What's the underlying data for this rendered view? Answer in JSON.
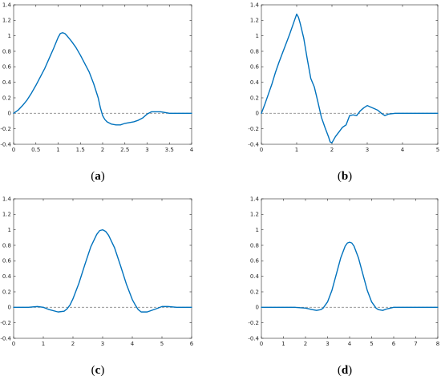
{
  "style": {
    "line_color": "#0072BD",
    "zero_line_color": "#8c8c8c",
    "axis_color": "#262626",
    "background": "#ffffff"
  },
  "chart_data": [
    {
      "type": "line",
      "caption": "(a)",
      "caption_letter": "a",
      "title": "",
      "xlabel": "",
      "ylabel": "",
      "xlim": [
        0,
        4
      ],
      "ylim": [
        -0.4,
        1.4
      ],
      "xticks": [
        0,
        0.5,
        1,
        1.5,
        2,
        2.5,
        3,
        3.5,
        4
      ],
      "xtick_labels": [
        "0",
        "0.5",
        "1",
        "1.5",
        "2",
        "2.5",
        "3",
        "3.5",
        "4"
      ],
      "yticks": [
        -0.4,
        -0.2,
        0,
        0.2,
        0.4,
        0.6,
        0.8,
        1,
        1.2,
        1.4
      ],
      "ytick_labels": [
        "-0.4",
        "-0.2",
        "0",
        "0.2",
        "0.4",
        "0.6",
        "0.8",
        "1",
        "1.2",
        "1.4"
      ],
      "grid": false,
      "reference_line": {
        "y": 0,
        "style": "dashed"
      },
      "series": [
        {
          "x": [
            0,
            0.1,
            0.2,
            0.3,
            0.4,
            0.5,
            0.6,
            0.7,
            0.8,
            0.9,
            1.0,
            1.05,
            1.1,
            1.15,
            1.2,
            1.3,
            1.4,
            1.5,
            1.6,
            1.7,
            1.8,
            1.9,
            1.95,
            2.0,
            2.05,
            2.1,
            2.2,
            2.3,
            2.4,
            2.5,
            2.6,
            2.7,
            2.8,
            2.9,
            3.0,
            3.1,
            3.2,
            3.3,
            3.4,
            3.5,
            3.6,
            3.7,
            3.8,
            3.9,
            4.0
          ],
          "y": [
            0,
            0.04,
            0.1,
            0.17,
            0.26,
            0.36,
            0.47,
            0.58,
            0.71,
            0.84,
            0.98,
            1.03,
            1.04,
            1.03,
            1.0,
            0.93,
            0.85,
            0.75,
            0.64,
            0.53,
            0.38,
            0.2,
            0.07,
            -0.03,
            -0.08,
            -0.11,
            -0.14,
            -0.15,
            -0.15,
            -0.13,
            -0.12,
            -0.11,
            -0.09,
            -0.06,
            -0.01,
            0.02,
            0.02,
            0.02,
            0.01,
            0.0,
            0.0,
            0.0,
            0.0,
            0.0,
            0.0
          ]
        }
      ]
    },
    {
      "type": "line",
      "caption": "(b)",
      "caption_letter": "b",
      "title": "",
      "xlabel": "",
      "ylabel": "",
      "xlim": [
        0,
        5
      ],
      "ylim": [
        -0.4,
        1.4
      ],
      "xticks": [
        0,
        1,
        2,
        3,
        4,
        5
      ],
      "xtick_labels": [
        "0",
        "1",
        "2",
        "3",
        "4",
        "5"
      ],
      "yticks": [
        -0.4,
        -0.2,
        0,
        0.2,
        0.4,
        0.6,
        0.8,
        1,
        1.2,
        1.4
      ],
      "ytick_labels": [
        "-0.4",
        "-0.2",
        "0",
        "0.2",
        "0.4",
        "0.6",
        "0.8",
        "1",
        "1.2",
        "1.4"
      ],
      "grid": false,
      "reference_line": {
        "y": 0,
        "style": "dashed"
      },
      "series": [
        {
          "x": [
            0,
            0.1,
            0.2,
            0.3,
            0.4,
            0.5,
            0.6,
            0.7,
            0.8,
            0.9,
            1.0,
            1.05,
            1.1,
            1.2,
            1.3,
            1.4,
            1.5,
            1.6,
            1.7,
            1.8,
            1.9,
            1.95,
            2.0,
            2.05,
            2.1,
            2.2,
            2.3,
            2.4,
            2.5,
            2.6,
            2.7,
            2.8,
            2.9,
            3.0,
            3.1,
            3.2,
            3.3,
            3.4,
            3.5,
            3.6,
            3.8,
            4.0,
            4.5,
            5.0
          ],
          "y": [
            0,
            0.12,
            0.25,
            0.38,
            0.53,
            0.66,
            0.78,
            0.9,
            1.02,
            1.15,
            1.28,
            1.24,
            1.16,
            0.97,
            0.7,
            0.45,
            0.34,
            0.15,
            -0.05,
            -0.18,
            -0.3,
            -0.37,
            -0.38,
            -0.34,
            -0.3,
            -0.24,
            -0.18,
            -0.15,
            -0.03,
            -0.02,
            -0.03,
            0.03,
            0.07,
            0.1,
            0.08,
            0.06,
            0.04,
            0.0,
            -0.03,
            -0.01,
            0.0,
            0.0,
            0.0,
            0.0
          ]
        }
      ]
    },
    {
      "type": "line",
      "caption": "(c)",
      "caption_letter": "c",
      "title": "",
      "xlabel": "",
      "ylabel": "",
      "xlim": [
        0,
        6
      ],
      "ylim": [
        -0.4,
        1.4
      ],
      "xticks": [
        0,
        1,
        2,
        3,
        4,
        5,
        6
      ],
      "xtick_labels": [
        "0",
        "1",
        "2",
        "3",
        "4",
        "5",
        "6"
      ],
      "yticks": [
        -0.4,
        -0.2,
        0,
        0.2,
        0.4,
        0.6,
        0.8,
        1,
        1.2,
        1.4
      ],
      "ytick_labels": [
        "-0.4",
        "-0.2",
        "0",
        "0.2",
        "0.4",
        "0.6",
        "0.8",
        "1",
        "1.2",
        "1.4"
      ],
      "grid": false,
      "reference_line": {
        "y": 0,
        "style": "dashed"
      },
      "series": [
        {
          "x": [
            0,
            0.5,
            0.8,
            1.0,
            1.2,
            1.5,
            1.7,
            1.8,
            1.9,
            2.0,
            2.2,
            2.4,
            2.6,
            2.8,
            2.9,
            3.0,
            3.1,
            3.2,
            3.4,
            3.6,
            3.8,
            4.0,
            4.1,
            4.2,
            4.3,
            4.5,
            4.8,
            5.0,
            5.2,
            5.5,
            6.0
          ],
          "y": [
            0,
            0.0,
            0.01,
            0.0,
            -0.03,
            -0.06,
            -0.05,
            -0.02,
            0.03,
            0.11,
            0.31,
            0.55,
            0.78,
            0.94,
            0.99,
            1.0,
            0.98,
            0.93,
            0.77,
            0.54,
            0.3,
            0.1,
            0.03,
            -0.03,
            -0.06,
            -0.06,
            -0.02,
            0.01,
            0.01,
            0.0,
            0.0
          ]
        }
      ]
    },
    {
      "type": "line",
      "caption": "(d)",
      "caption_letter": "d",
      "title": "",
      "xlabel": "",
      "ylabel": "",
      "xlim": [
        0,
        8
      ],
      "ylim": [
        -0.4,
        1.4
      ],
      "xticks": [
        0,
        1,
        2,
        3,
        4,
        5,
        6,
        7,
        8
      ],
      "xtick_labels": [
        "0",
        "1",
        "2",
        "3",
        "4",
        "5",
        "6",
        "7",
        "8"
      ],
      "yticks": [
        -0.4,
        -0.2,
        0,
        0.2,
        0.4,
        0.6,
        0.8,
        1,
        1.2,
        1.4
      ],
      "ytick_labels": [
        "-0.4",
        "-0.2",
        "0",
        "0.2",
        "0.4",
        "0.6",
        "0.8",
        "1",
        "1.2",
        "1.4"
      ],
      "grid": false,
      "reference_line": {
        "y": 0,
        "style": "dashed"
      },
      "series": [
        {
          "x": [
            0,
            1.0,
            1.5,
            2.0,
            2.3,
            2.5,
            2.7,
            2.8,
            3.0,
            3.2,
            3.4,
            3.6,
            3.8,
            3.9,
            4.0,
            4.1,
            4.2,
            4.4,
            4.6,
            4.8,
            5.0,
            5.2,
            5.3,
            5.5,
            5.7,
            6.0,
            6.5,
            7.0,
            8.0
          ],
          "y": [
            0,
            0.0,
            0.0,
            -0.01,
            -0.03,
            -0.04,
            -0.03,
            -0.01,
            0.07,
            0.22,
            0.43,
            0.64,
            0.79,
            0.83,
            0.84,
            0.83,
            0.79,
            0.64,
            0.43,
            0.22,
            0.07,
            -0.01,
            -0.03,
            -0.04,
            -0.02,
            0.0,
            0.0,
            0.0,
            0.0
          ]
        }
      ]
    }
  ]
}
